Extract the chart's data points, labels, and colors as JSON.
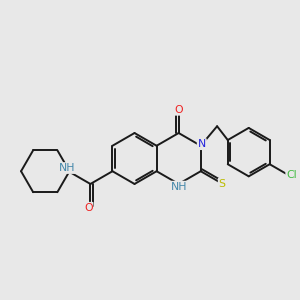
{
  "bg_color": "#e8e8e8",
  "bond_color": "#1a1a1a",
  "atom_colors": {
    "N": "#2222dd",
    "NH": "#2222dd",
    "NH_teal": "#4488aa",
    "O": "#ee2222",
    "S": "#bbbb00",
    "Cl": "#44bb44",
    "C": "#1a1a1a"
  },
  "figsize": [
    3.0,
    3.0
  ],
  "dpi": 100,
  "bl": 24
}
